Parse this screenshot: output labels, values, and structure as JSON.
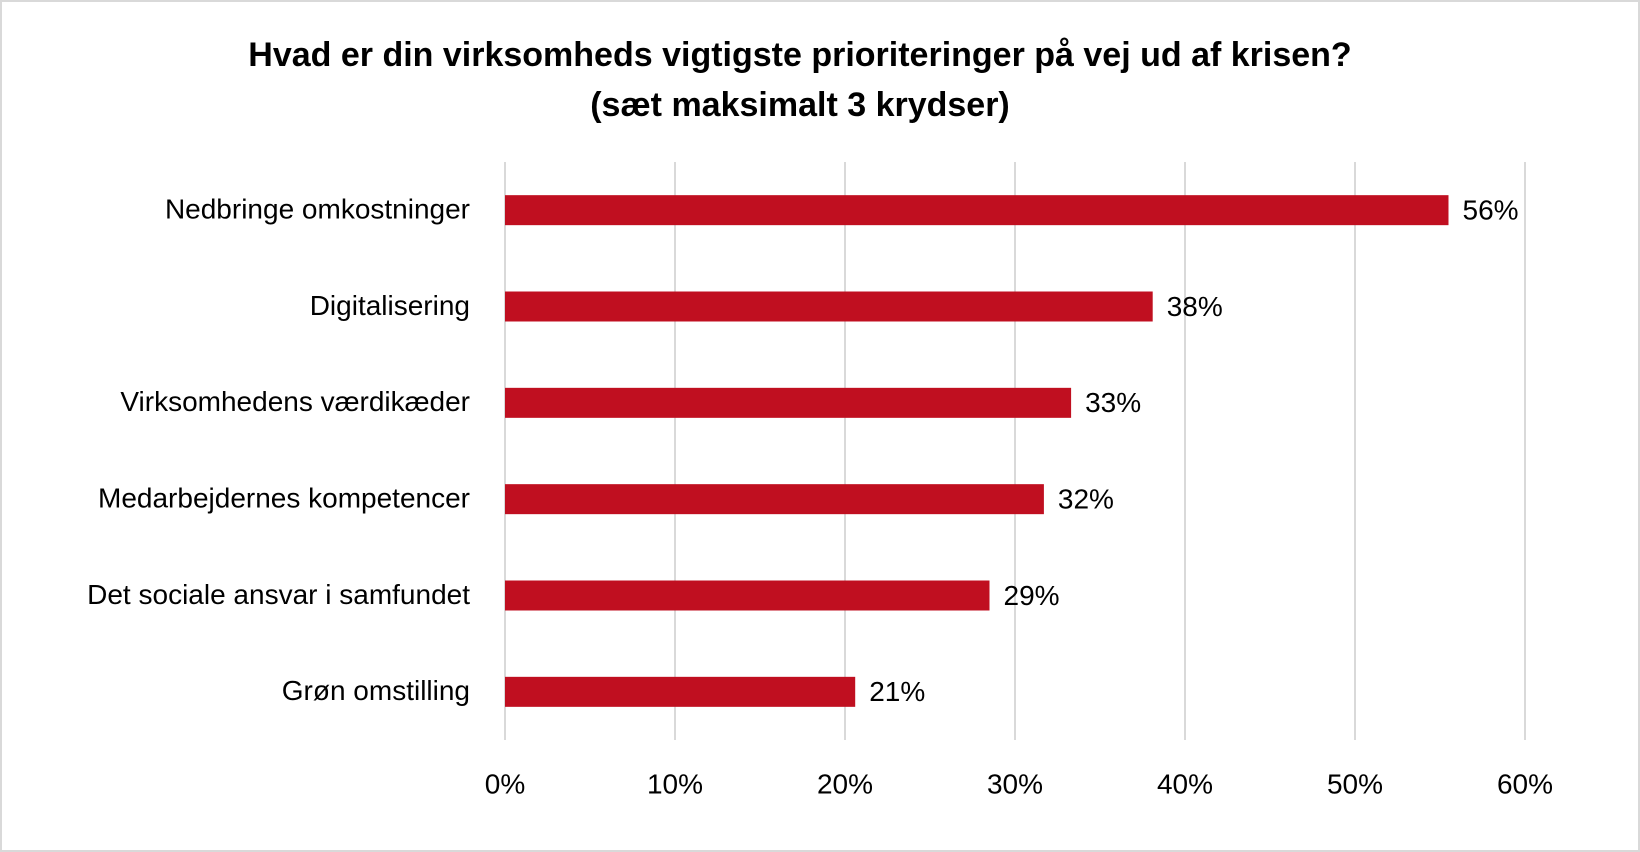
{
  "chart_data": {
    "type": "bar",
    "orientation": "horizontal",
    "title": "Hvad er din virksomheds vigtigste prioriteringer på vej ud af krisen?",
    "subtitle": "(sæt maksimalt 3 krydser)",
    "categories": [
      "Nedbringe omkostninger",
      "Digitalisering",
      "Virksomhedens værdikæder",
      "Medarbejdernes kompetencer",
      "Det sociale ansvar i samfundet",
      "Grøn omstilling"
    ],
    "values": [
      55.5,
      38.1,
      33.3,
      31.7,
      28.5,
      20.6
    ],
    "value_labels": [
      "56%",
      "38%",
      "33%",
      "32%",
      "29%",
      "21%"
    ],
    "color": "#c00f20",
    "xlim": [
      0,
      60
    ],
    "xticks": [
      {
        "value": 0,
        "label": "0%"
      },
      {
        "value": 10,
        "label": "10%"
      },
      {
        "value": 20,
        "label": "20%"
      },
      {
        "value": 30,
        "label": "30%"
      },
      {
        "value": 40,
        "label": "40%"
      },
      {
        "value": 50,
        "label": "50%"
      },
      {
        "value": 60,
        "label": "60%"
      }
    ],
    "grid": true
  }
}
